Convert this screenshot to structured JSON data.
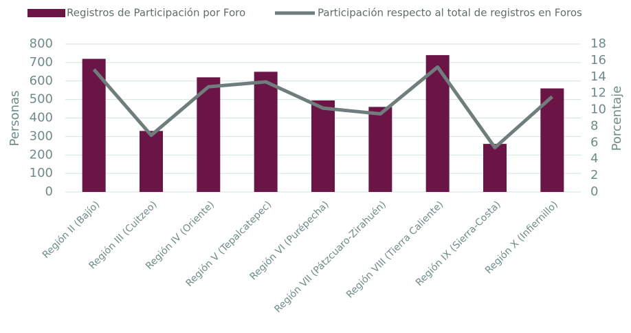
{
  "chart_data": {
    "type": "bar_line",
    "categories": [
      "Región II (Bajío)",
      "Región III (Cuitzeo)",
      "Región IV (Oriente)",
      "Región V (Tepalcatepec)",
      "Región VI (Purépecha)",
      "Región VII (Pátzcuaro-Zirahuén)",
      "Región VIII (Tierra Caliente)",
      "Región IX (Sierra-Costa)",
      "Región X (Infiernillo)"
    ],
    "series": [
      {
        "name": "Registros de Participación por Foro",
        "color": "#6b1546",
        "type": "bar",
        "values": [
          720,
          330,
          620,
          650,
          495,
          460,
          740,
          260,
          560
        ]
      },
      {
        "name": "Participación respecto al total de registros en Foros",
        "color": "#6f7e7c",
        "type": "line",
        "axis": "y2",
        "values": [
          14.9,
          6.9,
          12.8,
          13.4,
          10.2,
          9.5,
          15.2,
          5.4,
          11.6
        ]
      }
    ],
    "ylabel": "Personas",
    "y2label": "Porcentaje",
    "ylim": [
      0,
      800
    ],
    "yticks": [
      0,
      100,
      200,
      300,
      400,
      500,
      600,
      700,
      800
    ],
    "y2lim": [
      0,
      18
    ],
    "y2ticks": [
      0,
      2,
      4,
      6,
      8,
      10,
      12,
      14,
      16,
      18
    ],
    "grid": true
  }
}
